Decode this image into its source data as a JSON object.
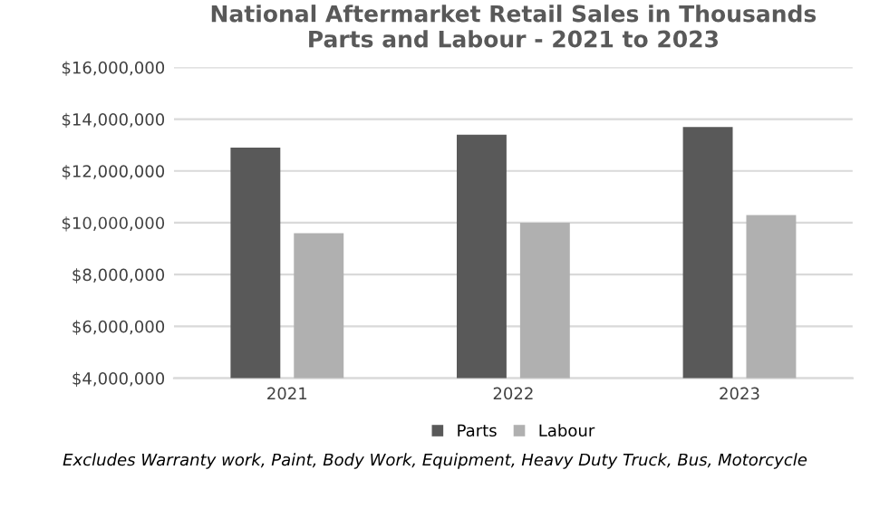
{
  "chart_data": {
    "type": "bar",
    "title": "National Aftermarket Retail Sales in Thousands\nParts and Labour - 2021 to 2023",
    "categories": [
      "2021",
      "2022",
      "2023"
    ],
    "series": [
      {
        "name": "Parts",
        "color": "#595959",
        "values": [
          12900000,
          13400000,
          13700000
        ]
      },
      {
        "name": "Labour",
        "color": "#b0b0b0",
        "values": [
          9600000,
          10000000,
          10300000
        ]
      }
    ],
    "ylim": [
      4000000,
      16000000
    ],
    "yticks": [
      {
        "value": 4000000,
        "label": "$4,000,000"
      },
      {
        "value": 6000000,
        "label": "$6,000,000"
      },
      {
        "value": 8000000,
        "label": "$8,000,000"
      },
      {
        "value": 10000000,
        "label": "$10,000,000"
      },
      {
        "value": 12000000,
        "label": "$12,000,000"
      },
      {
        "value": 14000000,
        "label": "$14,000,000"
      },
      {
        "value": 16000000,
        "label": "$16,000,000"
      }
    ],
    "grid": "y",
    "legend": "bottom",
    "annotations": [
      "Excludes Warranty work, Paint, Body Work, Equipment, Heavy Duty Truck, Bus, Motorcycle"
    ]
  }
}
